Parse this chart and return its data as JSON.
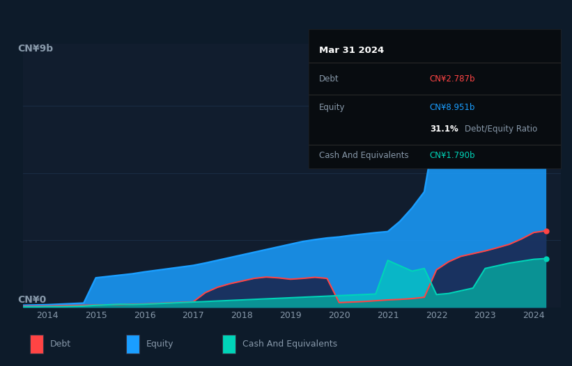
{
  "bg_color": "#0d1b2a",
  "plot_bg_color": "#111d2e",
  "tooltip_bg": "#080c10",
  "debt_color": "#ff4444",
  "equity_color": "#1a9eff",
  "cash_color": "#00d4b8",
  "grid_color": "#1a2d45",
  "text_color": "#8899aa",
  "title_color": "#ffffff",
  "ylabel_text": "CN¥9b",
  "y0_text": "CN¥0",
  "ylim": [
    0,
    9.8
  ],
  "xlim": [
    2013.5,
    2024.55
  ],
  "years": [
    2013.5,
    2013.75,
    2014.0,
    2014.25,
    2014.5,
    2014.75,
    2015.0,
    2015.25,
    2015.5,
    2015.75,
    2016.0,
    2016.25,
    2016.5,
    2016.75,
    2017.0,
    2017.25,
    2017.5,
    2017.75,
    2018.0,
    2018.25,
    2018.5,
    2018.75,
    2019.0,
    2019.25,
    2019.5,
    2019.75,
    2020.0,
    2020.25,
    2020.5,
    2020.75,
    2021.0,
    2021.25,
    2021.5,
    2021.75,
    2022.0,
    2022.25,
    2022.5,
    2022.75,
    2023.0,
    2023.25,
    2023.5,
    2023.75,
    2024.0,
    2024.25
  ],
  "equity": [
    0.08,
    0.09,
    0.1,
    0.12,
    0.14,
    0.16,
    1.1,
    1.15,
    1.2,
    1.25,
    1.32,
    1.38,
    1.44,
    1.5,
    1.56,
    1.65,
    1.75,
    1.85,
    1.95,
    2.05,
    2.15,
    2.25,
    2.35,
    2.45,
    2.52,
    2.58,
    2.62,
    2.68,
    2.73,
    2.78,
    2.82,
    3.2,
    3.7,
    4.3,
    6.9,
    6.7,
    6.6,
    6.75,
    7.0,
    7.4,
    7.9,
    8.4,
    8.951,
    9.1
  ],
  "debt": [
    0.04,
    0.04,
    0.05,
    0.06,
    0.07,
    0.08,
    0.09,
    0.1,
    0.11,
    0.12,
    0.13,
    0.15,
    0.17,
    0.19,
    0.21,
    0.55,
    0.75,
    0.88,
    0.98,
    1.08,
    1.13,
    1.1,
    1.05,
    1.08,
    1.12,
    1.08,
    0.18,
    0.2,
    0.22,
    0.25,
    0.28,
    0.3,
    0.33,
    0.38,
    1.4,
    1.7,
    1.9,
    2.0,
    2.1,
    2.22,
    2.35,
    2.55,
    2.787,
    2.85
  ],
  "cash": [
    0.02,
    0.02,
    0.03,
    0.03,
    0.04,
    0.05,
    0.08,
    0.1,
    0.12,
    0.11,
    0.12,
    0.14,
    0.16,
    0.18,
    0.2,
    0.22,
    0.24,
    0.26,
    0.28,
    0.3,
    0.32,
    0.34,
    0.36,
    0.38,
    0.4,
    0.42,
    0.44,
    0.46,
    0.48,
    0.5,
    1.75,
    1.55,
    1.35,
    1.45,
    0.48,
    0.52,
    0.62,
    0.72,
    1.45,
    1.55,
    1.65,
    1.72,
    1.79,
    1.82
  ],
  "xticks": [
    2014,
    2015,
    2016,
    2017,
    2018,
    2019,
    2020,
    2021,
    2022,
    2023,
    2024
  ],
  "legend_items": [
    "Debt",
    "Equity",
    "Cash And Equivalents"
  ],
  "tooltip_title": "Mar 31 2024",
  "tooltip_debt": "CN¥2.787b",
  "tooltip_equity": "CN¥8.951b",
  "tooltip_ratio": "31.1%",
  "tooltip_cash": "CN¥1.790b"
}
